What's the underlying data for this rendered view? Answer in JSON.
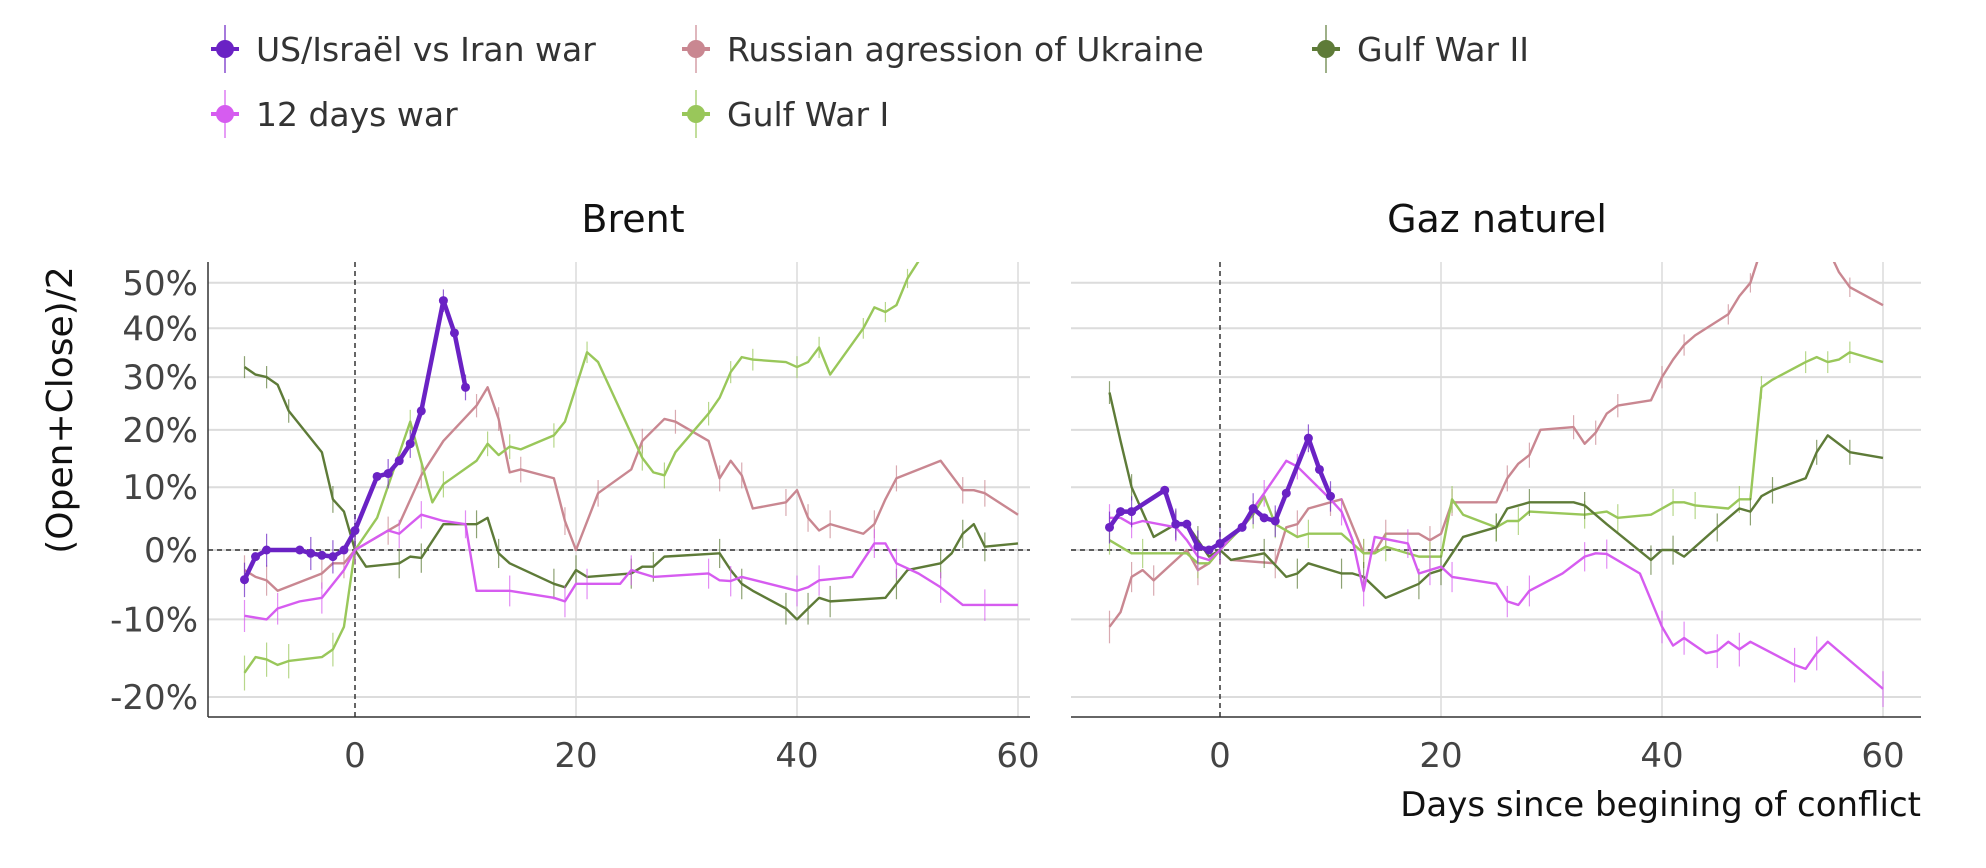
{
  "legend": {
    "items": [
      {
        "key": "us",
        "label": "US/Israël vs Iran war"
      },
      {
        "key": "rus",
        "label": "Russian agression of Ukraine"
      },
      {
        "key": "g2",
        "label": "Gulf War II"
      },
      {
        "key": "d12",
        "label": "12 days war"
      },
      {
        "key": "g1",
        "label": "Gulf War I"
      }
    ]
  },
  "colors": {
    "us": "#6a22c4",
    "d12": "#d65cf0",
    "rus": "#c98791",
    "g1": "#99c75a",
    "g2": "#5e7b38"
  },
  "chart_data": [
    {
      "type": "line",
      "title": "Brent",
      "ylabel": "(Open+Close)/2",
      "xlabel": "",
      "yscale": "log(1+r)",
      "xlim": [
        -11,
        62
      ],
      "ylim": [
        -22.4,
        55
      ],
      "yticks": [
        50,
        40,
        30,
        20,
        10,
        0,
        -10,
        -20
      ],
      "ytick_labels": [
        "50%",
        "40%",
        "30%",
        "20%",
        "10%",
        "0%",
        "-10%",
        "-20%"
      ],
      "xticks": [
        0,
        20,
        40,
        60
      ],
      "xtick_labels": [
        "0",
        "20",
        "40",
        "60"
      ],
      "series": [
        {
          "key": "rus",
          "x": [
            -10,
            -9,
            -8,
            -7,
            -3,
            -2,
            -1,
            0,
            3,
            4,
            6,
            8,
            11,
            12,
            13,
            14,
            15,
            18,
            19,
            20,
            22,
            25,
            26,
            28,
            29,
            32,
            33,
            34,
            35,
            36,
            39,
            40,
            41,
            42,
            43,
            46,
            47,
            48,
            49,
            53,
            55,
            56,
            57,
            60
          ],
          "y": [
            -3,
            -4,
            -4.5,
            -6,
            -3.5,
            -2,
            -2,
            0,
            3,
            4,
            12,
            18,
            24.5,
            28,
            22,
            12.5,
            13,
            11.5,
            4.5,
            0,
            9,
            13,
            18,
            22,
            21.5,
            18,
            11.5,
            14.5,
            12,
            6.5,
            7.5,
            9.5,
            5,
            3,
            4,
            2.5,
            4,
            8,
            11.5,
            14.5,
            9.5,
            9.5,
            9,
            5.5
          ]
        },
        {
          "key": "g1",
          "x": [
            -10,
            -9,
            -8,
            -7,
            -6,
            -3,
            -2,
            -1,
            0,
            2,
            5,
            7,
            8,
            11,
            12,
            13,
            14,
            15,
            18,
            19,
            21,
            22,
            26,
            27,
            28,
            29,
            32,
            33,
            34,
            35,
            36,
            39,
            40,
            41,
            42,
            43,
            46,
            47,
            48,
            49,
            50,
            51,
            52
          ],
          "y": [
            -17,
            -15,
            -15.3,
            -16,
            -15.5,
            -15,
            -14,
            -11,
            0,
            5,
            21.5,
            7.5,
            10.5,
            14.5,
            17.5,
            15.5,
            17,
            16.5,
            19,
            21.5,
            35,
            33,
            15,
            12.5,
            12,
            16,
            23,
            26,
            31,
            34,
            33.5,
            33,
            32,
            33,
            36,
            30.5,
            40,
            44.5,
            43.5,
            45,
            51,
            55,
            58
          ]
        },
        {
          "key": "g2",
          "x": [
            -10,
            -9,
            -8,
            -7,
            -6,
            -3,
            -2,
            -1,
            0,
            1,
            4,
            5,
            6,
            8,
            11,
            12,
            13,
            14,
            18,
            19,
            20,
            21,
            25,
            26,
            27,
            28,
            33,
            34,
            35,
            36,
            39,
            40,
            41,
            42,
            43,
            48,
            49,
            50,
            53,
            54,
            55,
            56,
            57,
            60
          ],
          "y": [
            32,
            30.5,
            30,
            28.5,
            23.5,
            16,
            8,
            6,
            0,
            -2.5,
            -2,
            -1,
            -1.2,
            4,
            4,
            5,
            -0.5,
            -2,
            -5,
            -5.5,
            -3,
            -4,
            -3.5,
            -2.5,
            -2.5,
            -1,
            -0.5,
            -3,
            -5,
            -6,
            -8.5,
            -10,
            -8.5,
            -7,
            -7.5,
            -7,
            -5,
            -3,
            -2,
            -0.5,
            2.5,
            4,
            0.5,
            1
          ]
        },
        {
          "key": "d12",
          "x": [
            -10,
            -8,
            -7,
            -5,
            -3,
            -1,
            0,
            3,
            4,
            5,
            6,
            8,
            10,
            11,
            14,
            18,
            19,
            20,
            21,
            24,
            25,
            27,
            32,
            33,
            34,
            35,
            40,
            41,
            42,
            45,
            47,
            48,
            49,
            51,
            53,
            55,
            57,
            60
          ],
          "y": [
            -9.5,
            -10,
            -8.5,
            -7.5,
            -7,
            -3,
            0,
            3,
            2.5,
            4,
            5.5,
            4.5,
            4,
            -6,
            -6,
            -7,
            -7.5,
            -5,
            -5,
            -5,
            -3,
            -4,
            -3.5,
            -4.5,
            -4.6,
            -4,
            -6,
            -5.5,
            -4.5,
            -4,
            1,
            1,
            -2,
            -3.5,
            -5.5,
            -8,
            -8,
            -8
          ]
        },
        {
          "key": "us",
          "markers": true,
          "x": [
            -10,
            -9,
            -8,
            -5,
            -4,
            -3,
            -2,
            -1,
            0,
            2,
            3,
            4,
            5,
            6,
            8,
            9,
            10
          ],
          "y": [
            -4.4,
            -1,
            0,
            0,
            -0.5,
            -0.8,
            -1,
            0,
            3,
            11.8,
            12.3,
            14.5,
            17.5,
            23.5,
            46,
            39,
            28
          ]
        }
      ]
    },
    {
      "type": "line",
      "title": "Gaz naturel",
      "xlabel": "Days since begining of conflict",
      "yscale": "log(1+r)",
      "xlim": [
        -13.5,
        63
      ],
      "ylim": [
        -22.4,
        55
      ],
      "yticks": [
        50,
        40,
        30,
        20,
        10,
        0,
        -10,
        -20
      ],
      "xticks": [
        0,
        20,
        40,
        60
      ],
      "xtick_labels": [
        "0",
        "20",
        "40",
        "60"
      ],
      "series": [
        {
          "key": "rus",
          "x": [
            -10,
            -9,
            -8,
            -7,
            -6,
            -3,
            -2,
            -1,
            0,
            1,
            5,
            6,
            7,
            8,
            10,
            11,
            13,
            14,
            15,
            18,
            19,
            20,
            21,
            25,
            26,
            27,
            28,
            29,
            32,
            33,
            34,
            35,
            36,
            39,
            40,
            41,
            42,
            43,
            46,
            47,
            48,
            49,
            55,
            56,
            57,
            60
          ],
          "y": [
            -11,
            -9,
            -4,
            -3,
            -4.5,
            0,
            -3,
            -2,
            0,
            -1.5,
            -2,
            3.5,
            4,
            6.5,
            7.5,
            8,
            -0.5,
            -0.3,
            2.5,
            2.5,
            1.5,
            2.5,
            7.5,
            7.5,
            11.5,
            14,
            15.5,
            20,
            20.5,
            17.5,
            19.5,
            23,
            24.5,
            25.5,
            30,
            33.5,
            36.5,
            38.5,
            43,
            47,
            50,
            58,
            58,
            52.5,
            49,
            45
          ]
        },
        {
          "key": "g1",
          "x": [
            -10,
            -8,
            -7,
            -3,
            -2,
            -1,
            0,
            2,
            3,
            4,
            5,
            7,
            8,
            11,
            13,
            14,
            15,
            18,
            19,
            20,
            21,
            22,
            25,
            26,
            27,
            28,
            33,
            35,
            36,
            39,
            41,
            42,
            43,
            46,
            47,
            48,
            49,
            50,
            53,
            54,
            55,
            56,
            57,
            60
          ],
          "y": [
            1.5,
            -0.5,
            -0.5,
            -0.5,
            -2,
            -2,
            0,
            3.5,
            5.5,
            8.5,
            4,
            2,
            2.5,
            2.5,
            -0.5,
            -0.5,
            0.5,
            -1,
            -1,
            -1,
            8,
            5.5,
            3.5,
            4.5,
            4.5,
            6,
            5.5,
            6,
            5,
            5.5,
            7.5,
            7.5,
            7,
            6.5,
            8,
            8,
            28,
            29.5,
            33,
            34,
            33,
            33.5,
            35,
            33
          ]
        },
        {
          "key": "g2",
          "x": [
            -10,
            -9,
            -8,
            -6,
            -4,
            -3,
            -2,
            -1,
            0,
            1,
            4,
            6,
            7,
            8,
            11,
            12,
            13,
            15,
            18,
            19,
            20,
            22,
            25,
            26,
            28,
            32,
            33,
            35,
            39,
            40,
            41,
            42,
            45,
            47,
            48,
            49,
            50,
            53,
            54,
            55,
            57,
            60
          ],
          "y": [
            27,
            18,
            10,
            2,
            4,
            4,
            1.5,
            -1,
            0,
            -1.5,
            -0.5,
            -4,
            -3.5,
            -2,
            -3.5,
            -3.5,
            -4,
            -7,
            -5,
            -3.5,
            -3,
            2,
            3.5,
            6.5,
            7.5,
            7.5,
            7,
            4,
            -1.5,
            0,
            0,
            -1,
            3.5,
            6.5,
            6,
            8.5,
            9.5,
            11.5,
            16,
            19,
            16,
            15
          ]
        },
        {
          "key": "d12",
          "x": [
            -10,
            -9,
            -8,
            -7,
            -4,
            -3,
            -2,
            -1,
            0,
            2,
            4,
            6,
            7,
            10,
            11,
            12,
            13,
            14,
            17,
            18,
            19,
            20,
            21,
            25,
            26,
            27,
            28,
            31,
            33,
            34,
            35,
            38,
            40,
            41,
            42,
            44,
            45,
            46,
            47,
            48,
            52,
            53,
            54,
            55,
            60
          ],
          "y": [
            5,
            5,
            4,
            4.5,
            3.5,
            1.5,
            -1,
            -1.5,
            0,
            4,
            9,
            14.5,
            13.5,
            8,
            6,
            1.5,
            -6,
            2,
            1,
            -3.5,
            -3,
            -2.5,
            -4,
            -5,
            -7.5,
            -8,
            -6,
            -3.5,
            -1,
            -0.5,
            -0.6,
            -3.5,
            -11,
            -13.5,
            -12.5,
            -14.5,
            -14.2,
            -13,
            -14,
            -13,
            -16,
            -16.5,
            -14.5,
            -13,
            -19
          ]
        },
        {
          "key": "us",
          "markers": true,
          "x": [
            -10,
            -9,
            -8,
            -5,
            -4,
            -3,
            -2,
            -1,
            0,
            2,
            3,
            4,
            5,
            6,
            8,
            9,
            10
          ],
          "y": [
            3.5,
            6,
            6,
            9.5,
            4,
            4,
            0.5,
            0,
            1,
            3.5,
            6.5,
            5,
            4.5,
            9,
            18.5,
            13,
            8.5
          ]
        }
      ]
    }
  ]
}
